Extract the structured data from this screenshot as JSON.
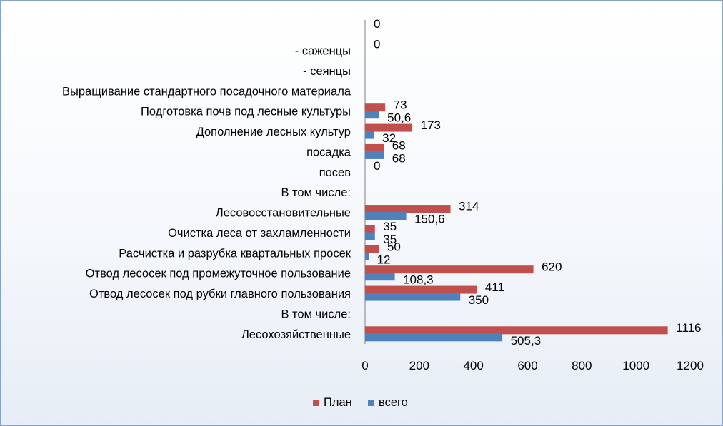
{
  "chart_data": {
    "type": "bar",
    "orientation": "horizontal",
    "categories": [
      "Лесохозяйственные",
      "В том числе:",
      "Отвод лесосек под рубки главного пользования",
      "Отвод лесосек под промежуточное пользование",
      "Расчистка и разрубка квартальных просек",
      "Очистка леса от захламленности",
      "Лесовосстановительные",
      "В том числе:",
      "посев",
      "посадка",
      "Дополнение лесных культур",
      "Подготовка почв под лесные культуры",
      "Выращивание стандартного посадочного материала",
      "- сеянцы",
      "- саженцы",
      ""
    ],
    "series": [
      {
        "name": "План",
        "color": "#c0504d",
        "values": [
          1116,
          null,
          411,
          620,
          50,
          35,
          314,
          null,
          0,
          68,
          173,
          73,
          null,
          null,
          0,
          0
        ],
        "labels": [
          "1116",
          "",
          "411",
          "620",
          "50",
          "35",
          "314",
          "",
          "0",
          "68",
          "173",
          "73",
          "",
          "",
          "0",
          "0"
        ]
      },
      {
        "name": "всего",
        "color": "#4f81bd",
        "values": [
          505.3,
          null,
          350,
          108.3,
          12,
          35,
          150.6,
          null,
          null,
          68,
          32,
          50.6,
          null,
          null,
          null,
          null
        ],
        "labels": [
          "505,3",
          "",
          "350",
          "108,3",
          "12",
          "35",
          "150,6",
          "",
          "",
          "68",
          "32",
          "50,6",
          "",
          "",
          "",
          ""
        ]
      }
    ],
    "xlim": [
      0,
      1200
    ],
    "xticks": [
      0,
      200,
      400,
      600,
      800,
      1000,
      1200
    ],
    "grid": false,
    "legend_position": "bottom"
  }
}
